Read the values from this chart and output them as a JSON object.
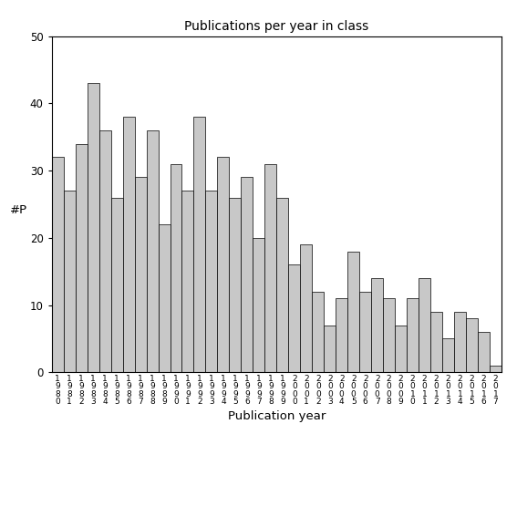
{
  "title": "Publications per year in class",
  "xlabel": "Publication year",
  "ylabel": "#P",
  "bar_color": "#c8c8c8",
  "bar_edgecolor": "#000000",
  "ylim": [
    0,
    50
  ],
  "yticks": [
    0,
    10,
    20,
    30,
    40,
    50
  ],
  "years": [
    1980,
    1981,
    1982,
    1983,
    1984,
    1985,
    1986,
    1987,
    1988,
    1989,
    1990,
    1991,
    1992,
    1993,
    1994,
    1995,
    1996,
    1997,
    1998,
    1999,
    2000,
    2001,
    2002,
    2003,
    2004,
    2005,
    2006,
    2007,
    2008,
    2009,
    2010,
    2011,
    2012,
    2013,
    2014,
    2015,
    2016,
    2017
  ],
  "values": [
    32,
    27,
    34,
    43,
    36,
    26,
    38,
    29,
    36,
    22,
    31,
    27,
    38,
    27,
    32,
    26,
    29,
    20,
    31,
    26,
    16,
    19,
    12,
    7,
    11,
    18,
    12,
    14,
    11,
    7,
    11,
    14,
    9,
    5,
    9,
    8,
    6,
    1
  ]
}
